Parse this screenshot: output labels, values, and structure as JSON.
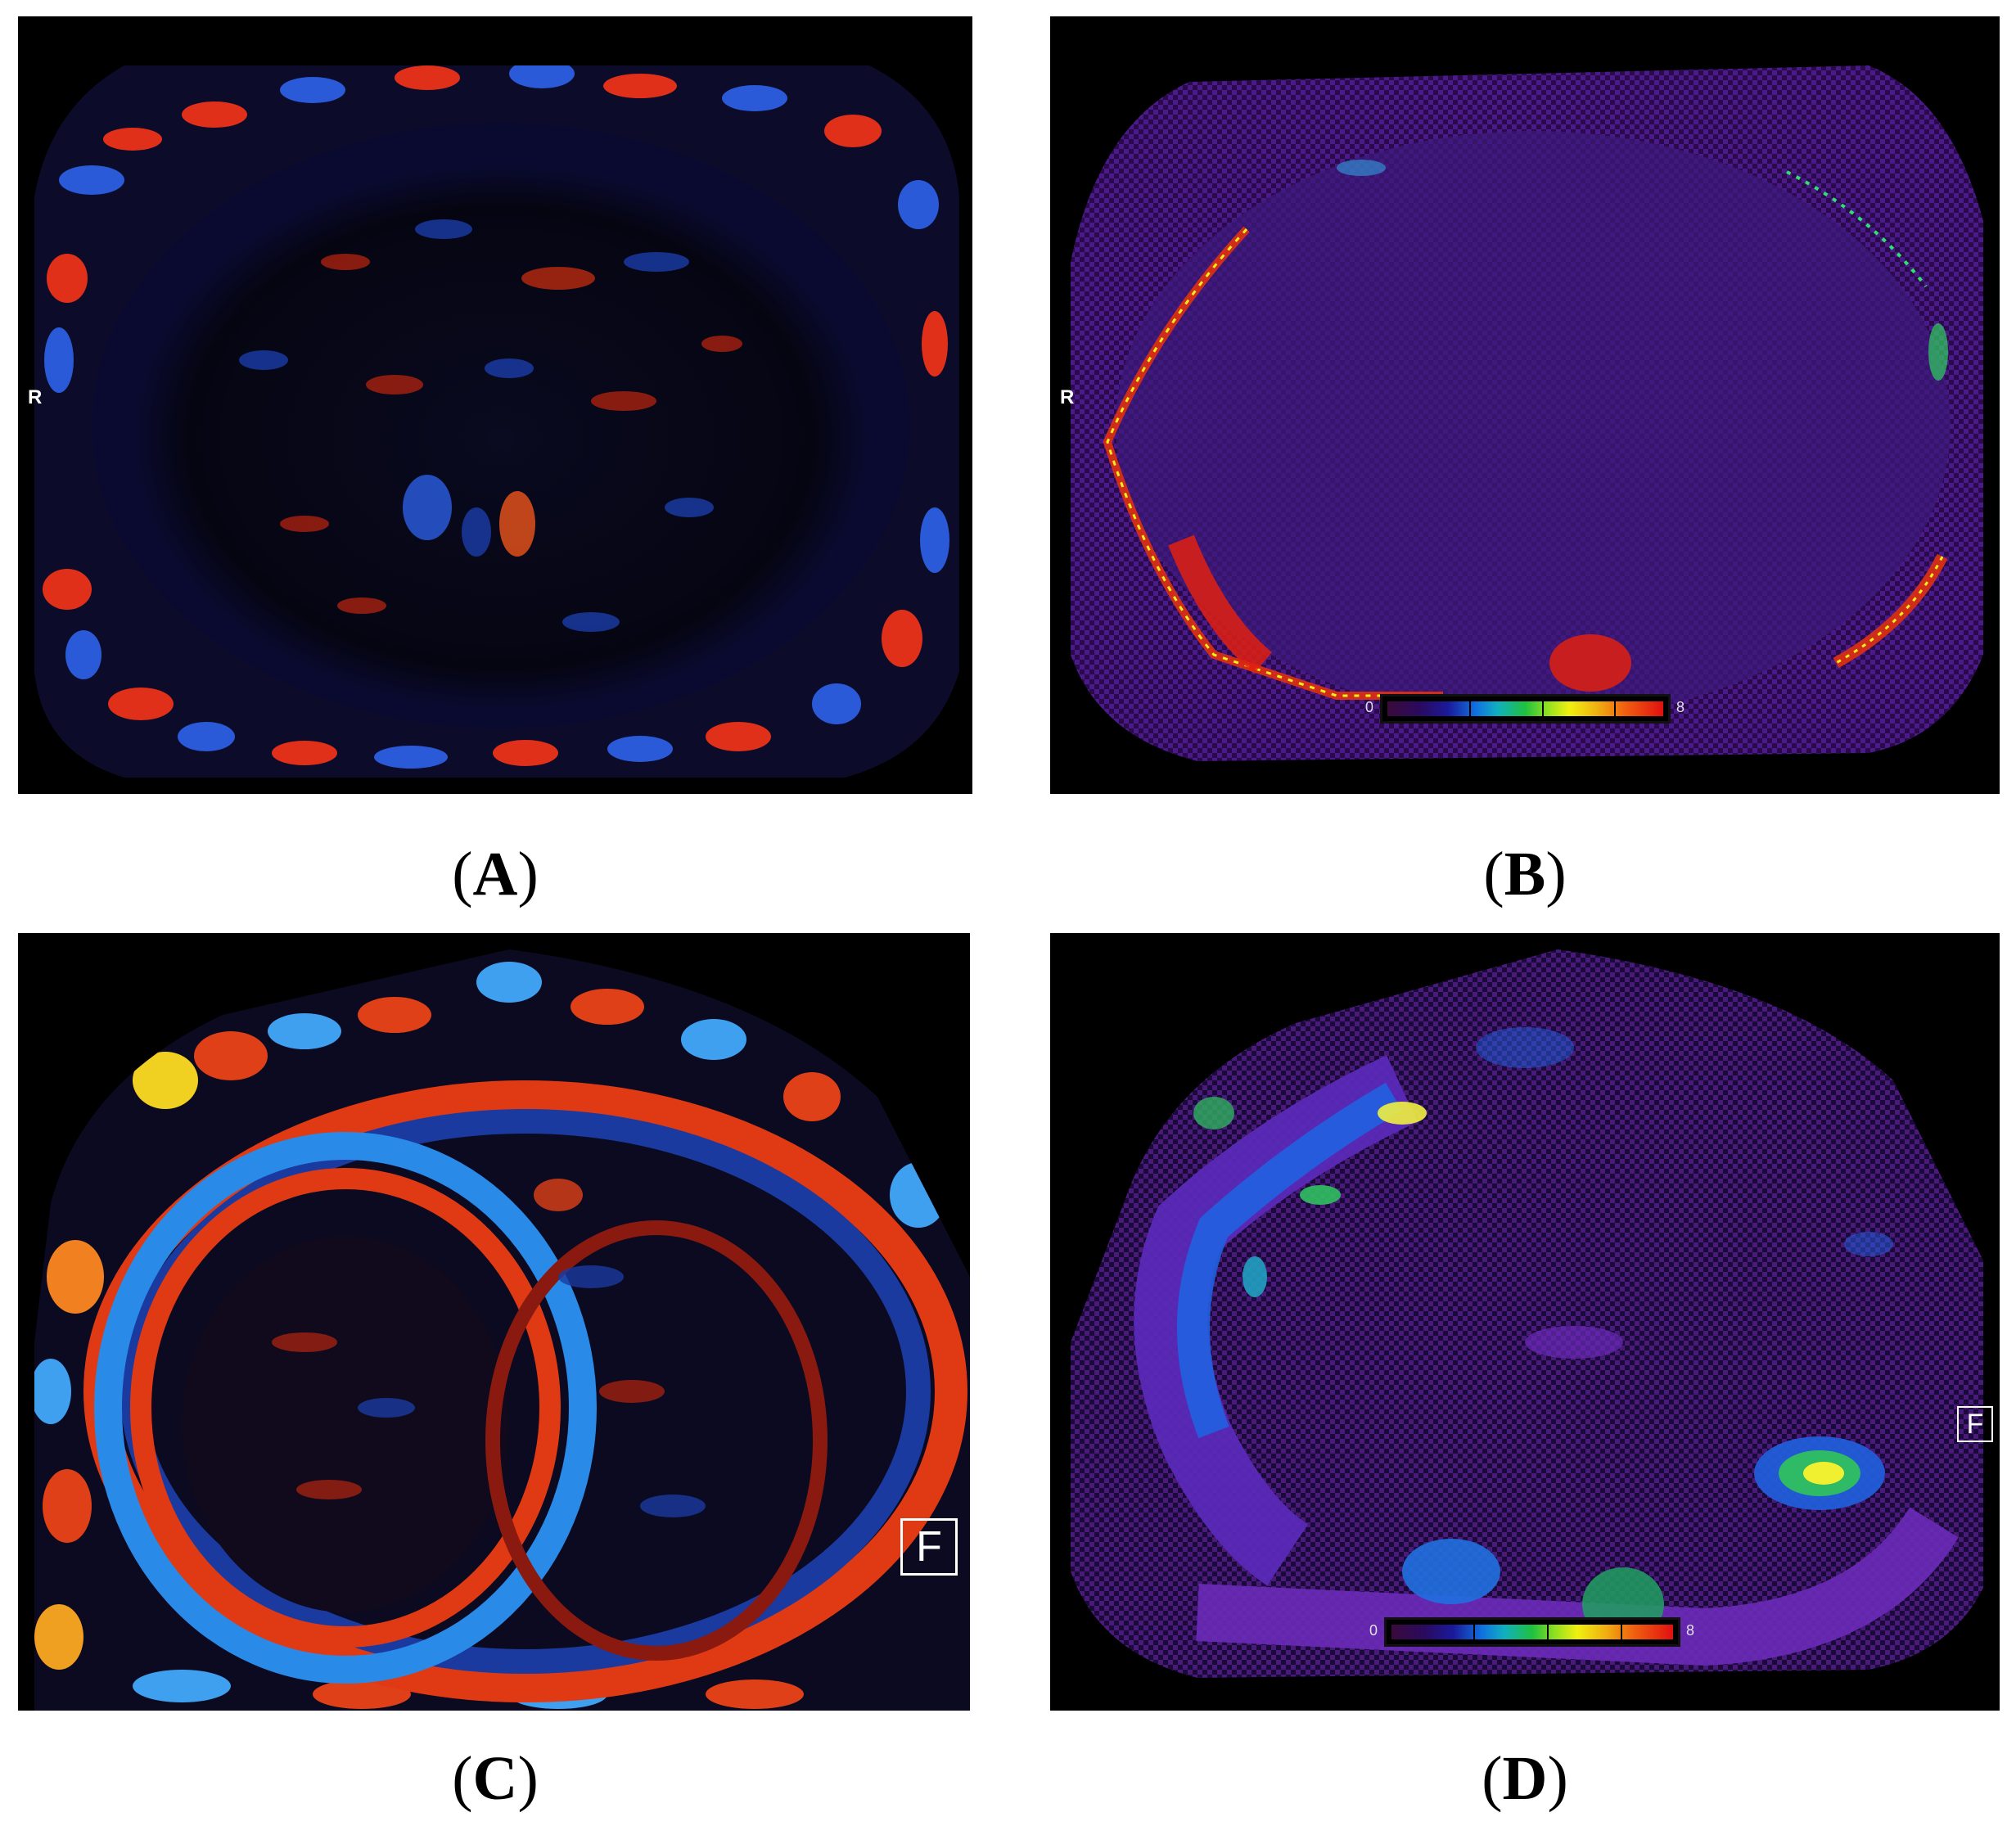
{
  "panels": [
    {
      "id": "A",
      "caption": "A",
      "orientation_label": "R"
    },
    {
      "id": "B",
      "caption": "B",
      "orientation_label": "R",
      "colorbar": {
        "min": "0",
        "max": "8"
      }
    },
    {
      "id": "C",
      "caption": "C",
      "marker": "F"
    },
    {
      "id": "D",
      "caption": "D",
      "marker": "F",
      "colorbar": {
        "min": "0",
        "max": "8"
      }
    }
  ],
  "colors": {
    "background": "#000000",
    "red": "#e0301a",
    "blue": "#2a5ad8",
    "purple": "#3a1a6a",
    "cyan": "#40a0f0"
  }
}
